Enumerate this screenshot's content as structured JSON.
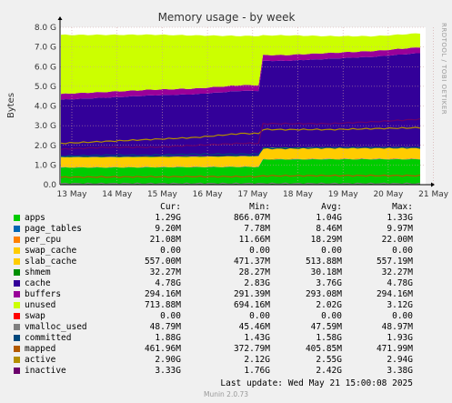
{
  "chart_data": {
    "type": "area",
    "title": "Memory usage - by week",
    "ylabel": "Bytes",
    "side_label": "RRDTOOL / TOBI OETIKER",
    "ylim": [
      0,
      8000000000
    ],
    "yticks": [
      0,
      1000000000,
      2000000000,
      3000000000,
      4000000000,
      5000000000,
      6000000000,
      7000000000,
      8000000000
    ],
    "ytick_labels": [
      "0.0",
      "1.0 G",
      "2.0 G",
      "3.0 G",
      "4.0 G",
      "5.0 G",
      "6.0 G",
      "7.0 G",
      "8.0 G"
    ],
    "x": [
      "13 May",
      "14 May",
      "15 May",
      "16 May",
      "17 May",
      "18 May",
      "19 May",
      "20 May",
      "21 May"
    ],
    "grid": true,
    "stacked_series": [
      {
        "name": "apps",
        "color": "#00cc00",
        "values": [
          0.87,
          0.87,
          0.88,
          0.89,
          0.9,
          1.28,
          1.29,
          1.29,
          1.29
        ]
      },
      {
        "name": "page_tables",
        "color": "#0066b3",
        "values": [
          0.008,
          0.008,
          0.008,
          0.008,
          0.008,
          0.009,
          0.009,
          0.009,
          0.009
        ]
      },
      {
        "name": "per_cpu",
        "color": "#ff8000",
        "values": [
          0.013,
          0.013,
          0.014,
          0.015,
          0.016,
          0.02,
          0.021,
          0.021,
          0.021
        ]
      },
      {
        "name": "swap_cache",
        "color": "#ffcc00",
        "values": [
          0,
          0,
          0,
          0,
          0,
          0,
          0,
          0,
          0
        ]
      },
      {
        "name": "slab_cache",
        "color": "#ffcc00",
        "values": [
          0.5,
          0.5,
          0.5,
          0.5,
          0.51,
          0.55,
          0.55,
          0.55,
          0.557
        ]
      },
      {
        "name": "shmem",
        "color": "#008f00",
        "values": [
          0.029,
          0.029,
          0.029,
          0.03,
          0.03,
          0.032,
          0.032,
          0.032,
          0.032
        ]
      },
      {
        "name": "cache",
        "color": "#330099",
        "values": [
          2.9,
          3.0,
          3.1,
          3.15,
          3.3,
          4.4,
          4.5,
          4.6,
          4.78
        ]
      },
      {
        "name": "buffers",
        "color": "#990099",
        "values": [
          0.29,
          0.29,
          0.29,
          0.29,
          0.29,
          0.294,
          0.294,
          0.294,
          0.294
        ]
      },
      {
        "name": "unused",
        "color": "#ccff00",
        "values": [
          3.0,
          2.9,
          2.8,
          2.7,
          2.5,
          1.0,
          0.85,
          0.75,
          0.71
        ]
      },
      {
        "name": "swap",
        "color": "#ff0000",
        "values": [
          0,
          0,
          0,
          0,
          0,
          0,
          0,
          0,
          0
        ]
      }
    ],
    "line_series": [
      {
        "name": "vmalloc_used",
        "color": "#808080",
        "values": [
          0.046,
          0.047,
          0.047,
          0.048,
          0.048,
          0.049,
          0.049,
          0.049,
          0.049
        ]
      },
      {
        "name": "committed",
        "color": "#00487d",
        "values": [
          1.45,
          1.5,
          1.5,
          1.55,
          1.55,
          1.85,
          1.88,
          1.88,
          1.88
        ]
      },
      {
        "name": "mapped",
        "color": "#b35a00",
        "values": [
          0.38,
          0.39,
          0.4,
          0.41,
          0.41,
          0.45,
          0.46,
          0.46,
          0.46
        ]
      },
      {
        "name": "active",
        "color": "#b38f00",
        "values": [
          2.1,
          2.2,
          2.3,
          2.4,
          2.6,
          2.8,
          2.8,
          2.85,
          2.9
        ]
      },
      {
        "name": "inactive",
        "color": "#6b006b",
        "values": [
          1.8,
          1.9,
          1.9,
          2.0,
          2.1,
          3.1,
          3.1,
          3.2,
          3.33
        ]
      }
    ]
  },
  "legend": {
    "headers": {
      "cur": "Cur:",
      "min": "Min:",
      "avg": "Avg:",
      "max": "Max:"
    },
    "rows": [
      {
        "name": "apps",
        "color": "#00cc00",
        "cur": "1.29G",
        "min": "866.07M",
        "avg": "1.04G",
        "max": "1.33G"
      },
      {
        "name": "page_tables",
        "color": "#0066b3",
        "cur": "9.20M",
        "min": "7.78M",
        "avg": "8.46M",
        "max": "9.97M"
      },
      {
        "name": "per_cpu",
        "color": "#ff8000",
        "cur": "21.08M",
        "min": "11.66M",
        "avg": "18.29M",
        "max": "22.00M"
      },
      {
        "name": "swap_cache",
        "color": "#ffcc00",
        "cur": "0.00",
        "min": "0.00",
        "avg": "0.00",
        "max": "0.00"
      },
      {
        "name": "slab_cache",
        "color": "#ffcc00",
        "cur": "557.00M",
        "min": "471.37M",
        "avg": "513.88M",
        "max": "557.19M"
      },
      {
        "name": "shmem",
        "color": "#008f00",
        "cur": "32.27M",
        "min": "28.27M",
        "avg": "30.18M",
        "max": "32.27M"
      },
      {
        "name": "cache",
        "color": "#330099",
        "cur": "4.78G",
        "min": "2.83G",
        "avg": "3.76G",
        "max": "4.78G"
      },
      {
        "name": "buffers",
        "color": "#990099",
        "cur": "294.16M",
        "min": "291.39M",
        "avg": "293.08M",
        "max": "294.16M"
      },
      {
        "name": "unused",
        "color": "#ccff00",
        "cur": "713.88M",
        "min": "694.16M",
        "avg": "2.02G",
        "max": "3.12G"
      },
      {
        "name": "swap",
        "color": "#ff0000",
        "cur": "0.00",
        "min": "0.00",
        "avg": "0.00",
        "max": "0.00"
      },
      {
        "name": "vmalloc_used",
        "color": "#808080",
        "cur": "48.79M",
        "min": "45.46M",
        "avg": "47.59M",
        "max": "48.97M"
      },
      {
        "name": "committed",
        "color": "#00487d",
        "cur": "1.88G",
        "min": "1.43G",
        "avg": "1.58G",
        "max": "1.93G"
      },
      {
        "name": "mapped",
        "color": "#b35a00",
        "cur": "461.96M",
        "min": "372.79M",
        "avg": "405.85M",
        "max": "471.99M"
      },
      {
        "name": "active",
        "color": "#b38f00",
        "cur": "2.90G",
        "min": "2.12G",
        "avg": "2.55G",
        "max": "2.94G"
      },
      {
        "name": "inactive",
        "color": "#6b006b",
        "cur": "3.33G",
        "min": "1.76G",
        "avg": "2.42G",
        "max": "3.38G"
      }
    ],
    "last_update": "Last update: Wed May 21 15:00:08 2025"
  },
  "footer": "Munin 2.0.73"
}
